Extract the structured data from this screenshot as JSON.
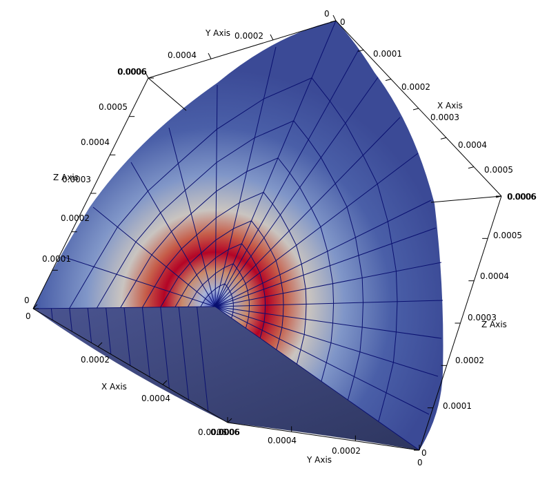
{
  "view": {
    "background": "#ffffff",
    "mesh_color": "#0a1070",
    "colormap": [
      "#3b4cc0",
      "#8fa8d6",
      "#dcdddd",
      "#d4a080",
      "#b40426"
    ],
    "surface_base_color": "#3b4a96",
    "bottom_face_color": "#3a4470"
  },
  "axes": {
    "top": {
      "title": "Y Axis",
      "ticks": [
        "0",
        "0.0002",
        "0.0004",
        "0.0006"
      ]
    },
    "top_right": {
      "title": "X Axis",
      "ticks": [
        "0",
        "0.0001",
        "0.0002",
        "0.0003",
        "0.0004",
        "0.0005",
        "0.0006"
      ]
    },
    "left": {
      "title": "Z Axis",
      "ticks": [
        "0",
        "0.0001",
        "0.0002",
        "0.0003",
        "0.0004",
        "0.0005",
        "0.0006"
      ]
    },
    "right": {
      "title": "Z Axis",
      "ticks": [
        "0",
        "0.0001",
        "0.0002",
        "0.0003",
        "0.0004",
        "0.0005",
        "0.0006"
      ]
    },
    "bottom_left": {
      "title": "X Axis",
      "ticks": [
        "0",
        "0.0002",
        "0.0004",
        "0.0006"
      ]
    },
    "bottom_right": {
      "title": "Y Axis",
      "ticks": [
        "0",
        "0.0002",
        "0.0004",
        "0.0006"
      ]
    },
    "extra_labels": [
      "0.0006",
      "0.0006",
      "0.0006"
    ]
  }
}
